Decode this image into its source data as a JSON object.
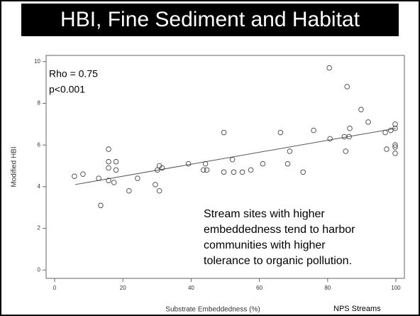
{
  "title": "HBI, Fine Sediment and Habitat",
  "chart_data": {
    "type": "scatter",
    "xlabel": "Substrate Embeddedness (%)",
    "ylabel": "Modified HBI",
    "x": [
      5.8,
      8.3,
      12.9,
      13.5,
      15.8,
      15.8,
      15.8,
      15.8,
      17.4,
      18.0,
      18.0,
      21.8,
      24.3,
      29.5,
      30.1,
      30.7,
      30.7,
      31.5,
      39.2,
      43.6,
      44.2,
      44.6,
      49.6,
      49.6,
      52.1,
      52.5,
      55.0,
      57.5,
      61.0,
      66.2,
      68.3,
      68.9,
      72.8,
      75.9,
      80.5,
      80.7,
      85.7,
      84.9,
      85.3,
      86.5,
      86.3,
      89.8,
      91.9,
      96.9,
      97.3,
      98.5,
      99.8,
      99.8,
      99.8,
      99.8,
      99.8
    ],
    "values": [
      4.5,
      4.6,
      4.4,
      3.1,
      5.8,
      5.2,
      4.9,
      4.3,
      4.2,
      5.2,
      4.8,
      3.8,
      4.4,
      4.1,
      4.8,
      5.0,
      3.8,
      4.9,
      5.1,
      4.8,
      5.1,
      4.8,
      6.6,
      4.7,
      5.3,
      4.7,
      4.7,
      4.8,
      5.1,
      6.6,
      5.1,
      5.7,
      4.7,
      6.7,
      9.7,
      6.3,
      8.8,
      6.4,
      5.7,
      6.8,
      6.4,
      7.7,
      7.1,
      6.6,
      5.8,
      6.7,
      7.0,
      6.8,
      6.0,
      5.9,
      5.6
    ],
    "color": "#444444",
    "trend_line": {
      "x": [
        6,
        100
      ],
      "y": [
        4.1,
        6.8
      ]
    },
    "xlim": [
      -2.5,
      102.5
    ],
    "ylim": [
      -0.4,
      10.3
    ],
    "xticks": [
      0,
      20,
      40,
      60,
      80,
      100
    ],
    "yticks": [
      0,
      2,
      4,
      6,
      8,
      10
    ],
    "annotations": [
      "Rho = 0.75",
      "p<0.001"
    ],
    "note_lines": [
      "Stream sites with higher",
      "embeddedness tend to harbor",
      "communities with higher",
      "tolerance to organic pollution."
    ],
    "source": "NPS Streams"
  }
}
